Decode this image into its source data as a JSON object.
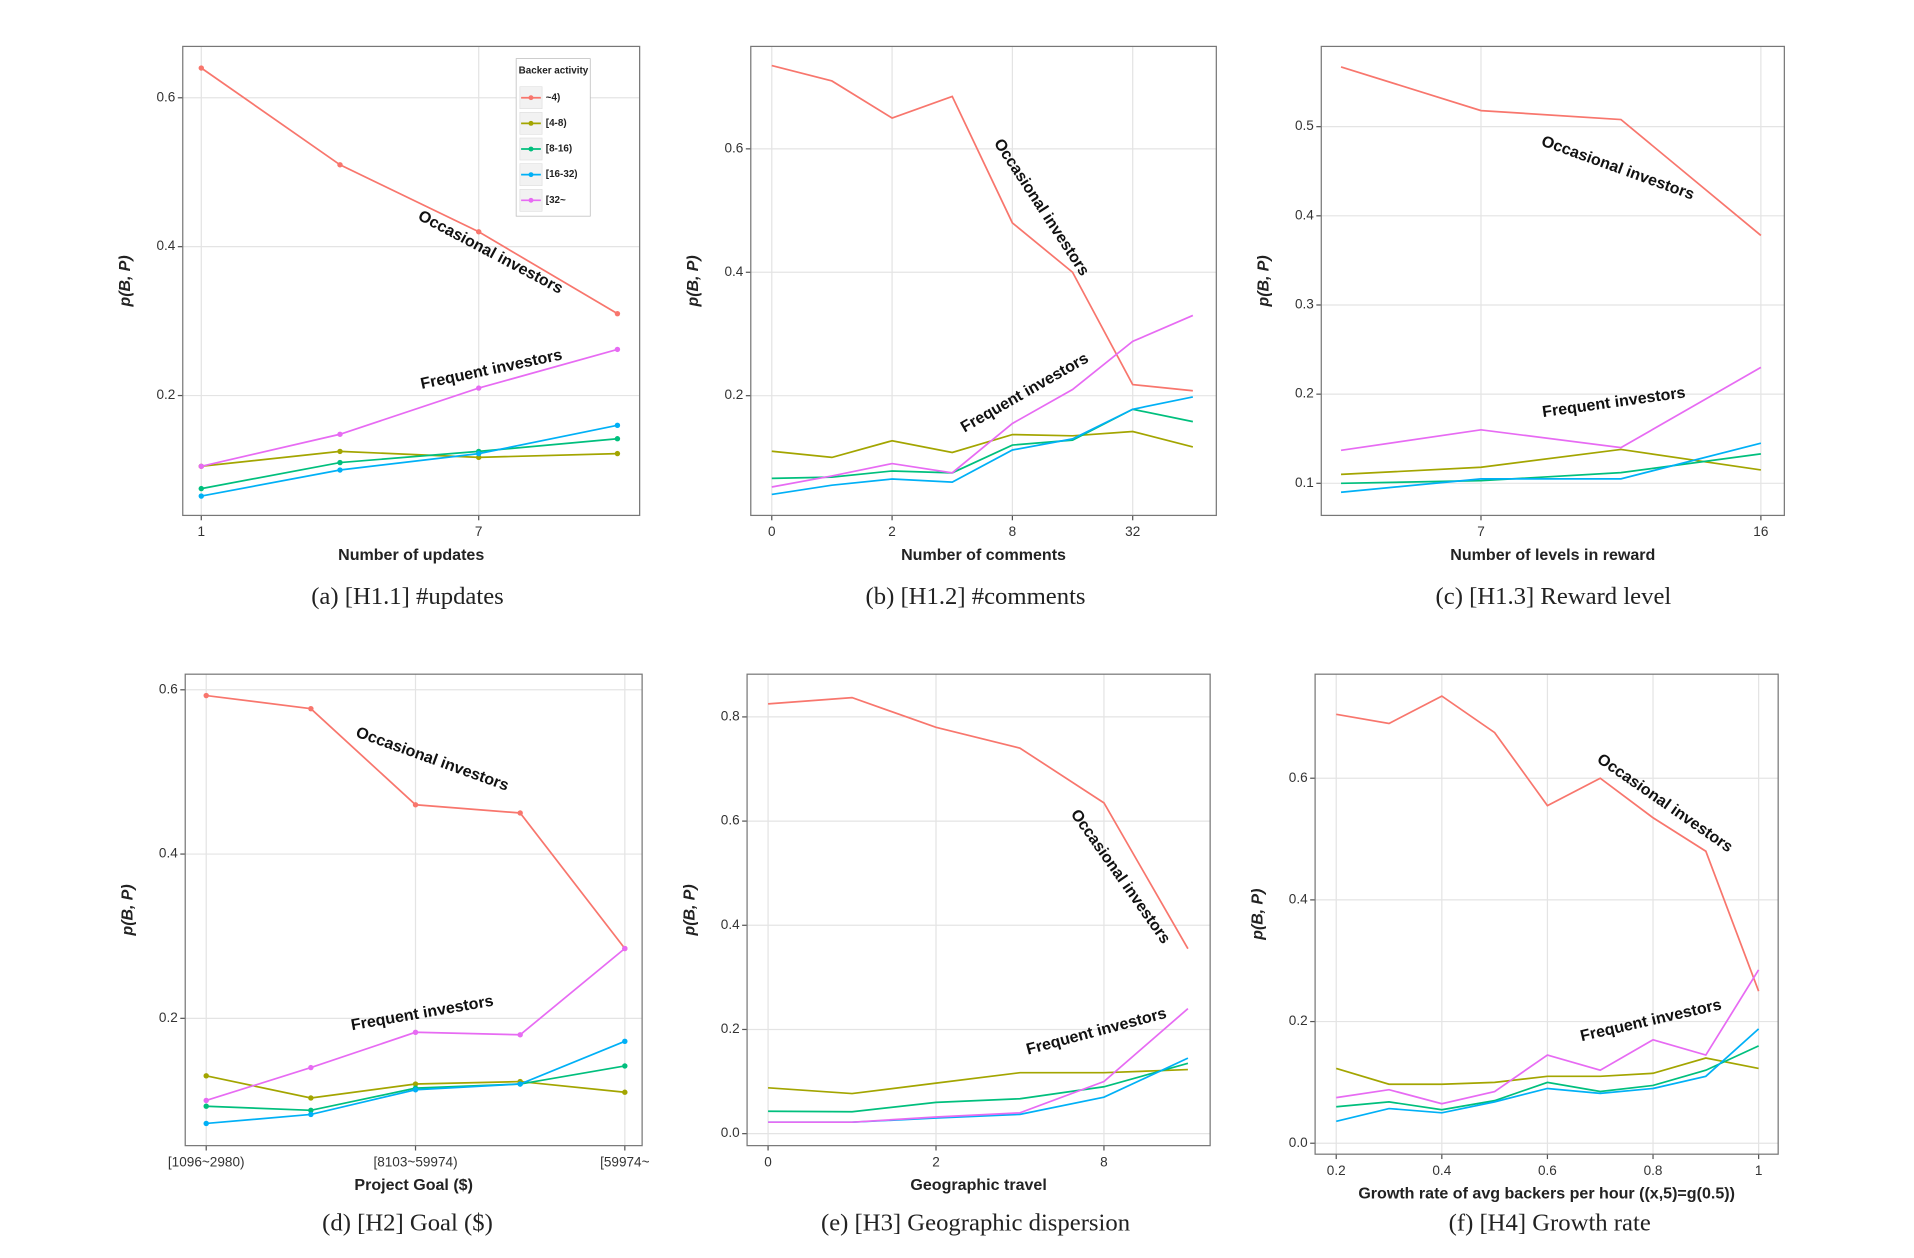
{
  "chart_data": [
    {
      "type": "line",
      "caption": "(a) [H1.1] #updates",
      "xlabel": "Number of updates",
      "ylabel": "p(B, P)",
      "categories": [
        "1",
        null,
        "7",
        null
      ],
      "ylim": [
        0.039,
        0.669
      ],
      "yticks": [
        0.2,
        0.4,
        0.6
      ],
      "grid": true,
      "markers": true,
      "annotations": [
        "Occasional investors",
        "Frequent investors"
      ],
      "legend": {
        "title": "Backer activity",
        "position": "top-right"
      },
      "series": [
        {
          "name": "~4)",
          "color": "#F8766D",
          "values": [
            0.64,
            0.51,
            0.42,
            0.31
          ]
        },
        {
          "name": "[4-8)",
          "color": "#A3A500",
          "values": [
            0.105,
            0.125,
            0.117,
            0.122
          ]
        },
        {
          "name": "[8-16)",
          "color": "#00BF7D",
          "values": [
            0.075,
            0.11,
            0.125,
            0.142
          ]
        },
        {
          "name": "[16-32)",
          "color": "#00B0F6",
          "values": [
            0.065,
            0.1,
            0.122,
            0.16
          ]
        },
        {
          "name": "[32~",
          "color": "#E76BF3",
          "values": [
            0.105,
            0.148,
            0.21,
            0.262
          ]
        }
      ]
    },
    {
      "type": "line",
      "caption": "(b) [H1.2] #comments",
      "xlabel": "Number of comments",
      "ylabel": "p(B, P)",
      "categories": [
        "0",
        null,
        "2",
        null,
        "8",
        null,
        "32",
        null
      ],
      "ylim": [
        0.006,
        0.766
      ],
      "yticks": [
        0.2,
        0.4,
        0.6
      ],
      "grid": true,
      "markers": false,
      "annotations": [
        "Occasional investors",
        "Frequent investors"
      ],
      "series": [
        {
          "color": "#F8766D",
          "values": [
            0.735,
            0.71,
            0.65,
            0.685,
            0.48,
            0.4,
            0.218,
            0.208
          ]
        },
        {
          "color": "#A3A500",
          "values": [
            0.11,
            0.1,
            0.127,
            0.108,
            0.137,
            0.135,
            0.142,
            0.117
          ]
        },
        {
          "color": "#00BF7D",
          "values": [
            0.066,
            0.068,
            0.078,
            0.075,
            0.12,
            0.128,
            0.178,
            0.158
          ]
        },
        {
          "color": "#00B0F6",
          "values": [
            0.04,
            0.055,
            0.065,
            0.06,
            0.112,
            0.13,
            0.178,
            0.198
          ]
        },
        {
          "color": "#E76BF3",
          "values": [
            0.052,
            0.07,
            0.09,
            0.075,
            0.155,
            0.21,
            0.288,
            0.33
          ]
        }
      ]
    },
    {
      "type": "line",
      "caption": "(c) [H1.3] Reward level",
      "xlabel": "Number of levels in reward",
      "ylabel": "p(B, P)",
      "categories": [
        null,
        "7",
        null,
        "16"
      ],
      "ylim": [
        0.064,
        0.59
      ],
      "yticks": [
        0.1,
        0.2,
        0.3,
        0.4,
        0.5
      ],
      "grid": true,
      "markers": false,
      "annotations": [
        "Occasional investors",
        "Frequent investors"
      ],
      "series": [
        {
          "color": "#F8766D",
          "values": [
            0.567,
            0.518,
            0.508,
            0.378
          ]
        },
        {
          "color": "#A3A500",
          "values": [
            0.11,
            0.118,
            0.138,
            0.115
          ]
        },
        {
          "color": "#00BF7D",
          "values": [
            0.1,
            0.103,
            0.112,
            0.133
          ]
        },
        {
          "color": "#00B0F6",
          "values": [
            0.09,
            0.105,
            0.105,
            0.145
          ]
        },
        {
          "color": "#E76BF3",
          "values": [
            0.137,
            0.16,
            0.14,
            0.23
          ]
        }
      ]
    },
    {
      "type": "line",
      "caption": "(d) [H2] Goal ($)",
      "xlabel": "Project Goal ($)",
      "ylabel": "p(B, P)",
      "categories": [
        "[1096~2980)",
        null,
        "[8103~59974)",
        null,
        "[59974~"
      ],
      "ylim": [
        0.045,
        0.619
      ],
      "yticks": [
        0.2,
        0.4,
        0.6
      ],
      "grid": true,
      "markers": true,
      "annotations": [
        "Occasional investors",
        "Frequent investors"
      ],
      "series": [
        {
          "color": "#F8766D",
          "values": [
            0.593,
            0.577,
            0.46,
            0.45,
            0.285
          ]
        },
        {
          "color": "#A3A500",
          "values": [
            0.13,
            0.103,
            0.12,
            0.123,
            0.11
          ]
        },
        {
          "color": "#00BF7D",
          "values": [
            0.093,
            0.088,
            0.115,
            0.12,
            0.142
          ]
        },
        {
          "color": "#00B0F6",
          "values": [
            0.072,
            0.083,
            0.113,
            0.12,
            0.172
          ]
        },
        {
          "color": "#E76BF3",
          "values": [
            0.1,
            0.14,
            0.183,
            0.18,
            0.285
          ]
        }
      ]
    },
    {
      "type": "line",
      "caption": "(e) [H3] Geographic dispersion",
      "xlabel": "Geographic travel",
      "ylabel": "p(B, P)",
      "categories": [
        "0",
        null,
        "2",
        null,
        "8",
        null
      ],
      "ylim": [
        -0.023,
        0.882
      ],
      "yticks": [
        {
          "value": 0,
          "label": "0.0"
        },
        0.2,
        0.4,
        0.6,
        0.8
      ],
      "grid": true,
      "markers": false,
      "annotations": [
        "Occasional investors",
        "Frequent investors"
      ],
      "series": [
        {
          "color": "#F8766D",
          "values": [
            0.825,
            0.837,
            0.78,
            0.74,
            0.635,
            0.355
          ]
        },
        {
          "color": "#A3A500",
          "values": [
            0.088,
            0.077,
            0.097,
            0.117,
            0.117,
            0.123
          ]
        },
        {
          "color": "#00BF7D",
          "values": [
            0.043,
            0.042,
            0.06,
            0.067,
            0.09,
            0.135
          ]
        },
        {
          "color": "#00B0F6",
          "values": [
            0.022,
            0.022,
            0.03,
            0.037,
            0.07,
            0.145
          ]
        },
        {
          "color": "#E76BF3",
          "values": [
            0.022,
            0.022,
            0.032,
            0.04,
            0.1,
            0.24
          ]
        }
      ]
    },
    {
      "type": "line",
      "caption": "(f) [H4] Growth rate",
      "xlabel": "Growth rate of avg backers per hour ((x,5)=g(0.5))",
      "ylabel": "p(B, P)",
      "x": [
        0.2,
        0.3,
        0.4,
        0.5,
        0.6,
        0.7,
        0.8,
        0.9,
        1
      ],
      "xlim": [
        0.16,
        1.037
      ],
      "xticks": [
        0.2,
        0.4,
        0.6,
        0.8,
        1
      ],
      "ylim": [
        -0.018,
        0.771
      ],
      "yticks": [
        {
          "value": 0,
          "label": "0.0"
        },
        0.2,
        0.4,
        0.6
      ],
      "grid": true,
      "markers": false,
      "annotations": [
        "Occasional investors",
        "Frequent investors"
      ],
      "series": [
        {
          "color": "#F8766D",
          "values": [
            0.705,
            0.69,
            0.735,
            0.675,
            0.555,
            0.6,
            0.535,
            0.48,
            0.25
          ]
        },
        {
          "color": "#A3A500",
          "values": [
            0.123,
            0.097,
            0.097,
            0.1,
            0.11,
            0.11,
            0.115,
            0.14,
            0.123
          ]
        },
        {
          "color": "#00BF7D",
          "values": [
            0.06,
            0.068,
            0.055,
            0.07,
            0.1,
            0.085,
            0.095,
            0.12,
            0.16
          ]
        },
        {
          "color": "#00B0F6",
          "values": [
            0.036,
            0.057,
            0.05,
            0.068,
            0.09,
            0.082,
            0.09,
            0.11,
            0.188
          ]
        },
        {
          "color": "#E76BF3",
          "values": [
            0.075,
            0.088,
            0.065,
            0.085,
            0.145,
            0.12,
            0.17,
            0.145,
            0.285
          ]
        }
      ]
    }
  ]
}
